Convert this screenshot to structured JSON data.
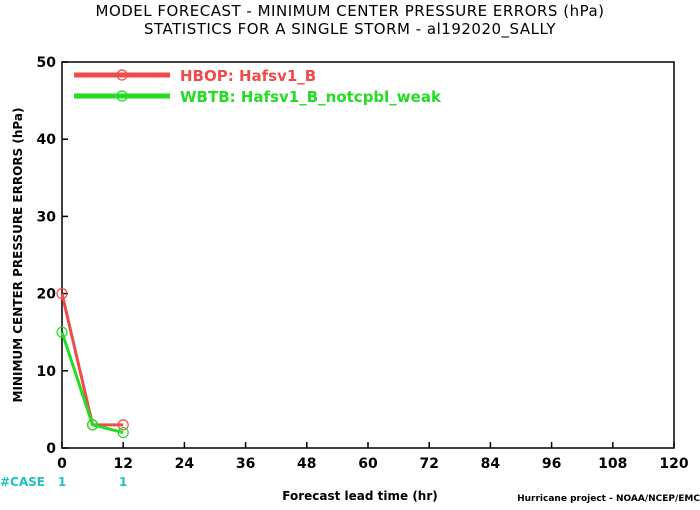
{
  "chart_data": {
    "type": "line",
    "title": "MODEL FORECAST - MINIMUM CENTER PRESSURE ERRORS (hPa)",
    "subtitle": "STATISTICS FOR A SINGLE STORM - al192020_SALLY",
    "xlabel": "Forecast lead time (hr)",
    "ylabel": "MINIMUM CENTER PRESSURE ERRORS (hPa)",
    "xlim": [
      0,
      120
    ],
    "ylim": [
      0,
      50
    ],
    "x_ticks": [
      "0",
      "12",
      "24",
      "36",
      "48",
      "60",
      "72",
      "84",
      "96",
      "108",
      "120"
    ],
    "y_ticks": [
      "0",
      "10",
      "20",
      "30",
      "40",
      "50"
    ],
    "grid": false,
    "legend_position": "top-left",
    "series": [
      {
        "name": "HBOP: Hafsv1_B",
        "color": "#f04b4b",
        "x": [
          0,
          6,
          12
        ],
        "values": [
          20,
          3,
          3
        ]
      },
      {
        "name": "WBTB: Hafsv1_B_notcpbl_weak",
        "color": "#22dd22",
        "x": [
          0,
          6,
          12
        ],
        "values": [
          15,
          3,
          2
        ]
      }
    ],
    "case_counts": {
      "label": "#CASE",
      "color": "#20c0c0",
      "x": [
        0,
        12
      ],
      "values": [
        "1",
        "1"
      ]
    },
    "credit": "Hurricane project - NOAA/NCEP/EMC"
  }
}
